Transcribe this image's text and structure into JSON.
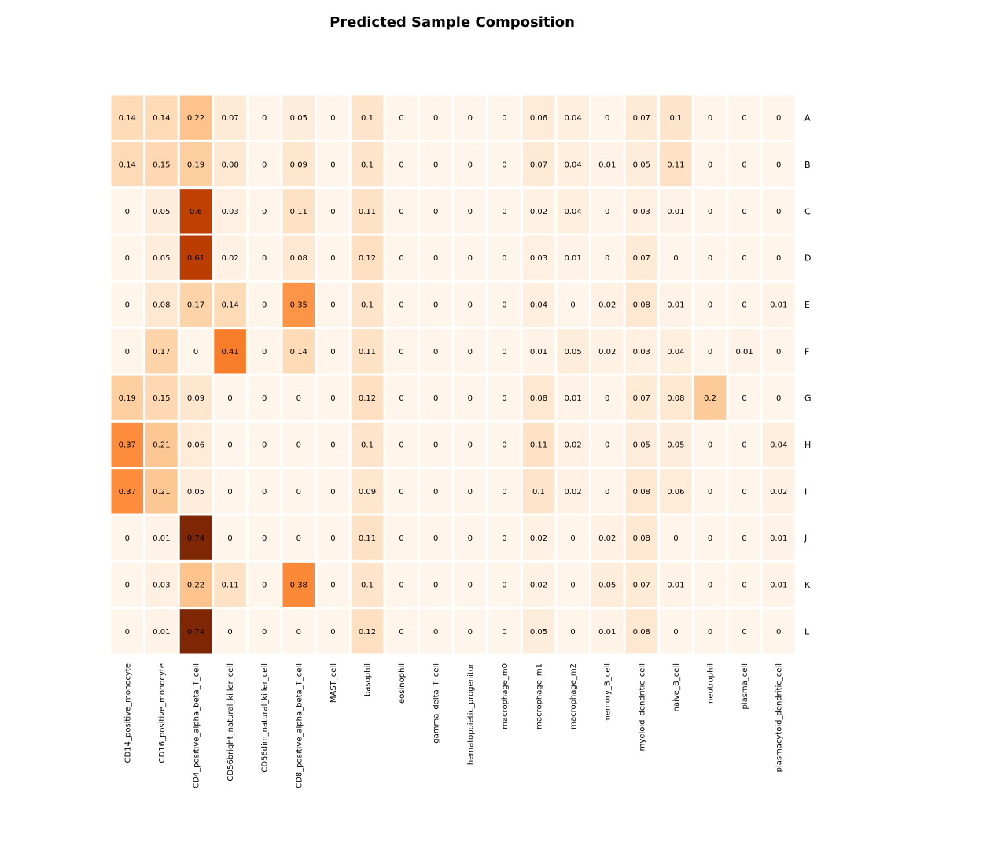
{
  "chart_data": {
    "type": "heatmap",
    "title": "Predicted Sample Composition",
    "colormap": "Oranges",
    "vmin": 0,
    "vmax": 0.74,
    "columns": [
      "CD14_positive_monocyte",
      "CD16_positive_monocyte",
      "CD4_positive_alpha_beta_T_cell",
      "CD56bright_natural_killer_cell",
      "CD56dim_natural_killer_cell",
      "CD8_positive_alpha_beta_T_cell",
      "MAST_cell",
      "basophil",
      "eosinophil",
      "gamma_delta_T_cell",
      "hematopoietic_progenitor",
      "macrophage_m0",
      "macrophage_m1",
      "macrophage_m2",
      "memory_B_cell",
      "myeloid_dendritic_cell",
      "naive_B_cell",
      "neutrophil",
      "plasma_cell",
      "plasmacytoid_dendritic_cell"
    ],
    "rows": [
      "A",
      "B",
      "C",
      "D",
      "E",
      "F",
      "G",
      "H",
      "I",
      "J",
      "K",
      "L"
    ],
    "values": [
      [
        0.14,
        0.14,
        0.22,
        0.07,
        0,
        0.05,
        0,
        0.1,
        0,
        0,
        0,
        0,
        0.06,
        0.04,
        0,
        0.07,
        0.1,
        0,
        0,
        0
      ],
      [
        0.14,
        0.15,
        0.19,
        0.08,
        0,
        0.09,
        0,
        0.1,
        0,
        0,
        0,
        0,
        0.07,
        0.04,
        0.01,
        0.05,
        0.11,
        0,
        0,
        0
      ],
      [
        0,
        0.05,
        0.6,
        0.03,
        0,
        0.11,
        0,
        0.11,
        0,
        0,
        0,
        0,
        0.02,
        0.04,
        0,
        0.03,
        0.01,
        0,
        0,
        0
      ],
      [
        0,
        0.05,
        0.61,
        0.02,
        0,
        0.08,
        0,
        0.12,
        0,
        0,
        0,
        0,
        0.03,
        0.01,
        0,
        0.07,
        0,
        0,
        0,
        0
      ],
      [
        0,
        0.08,
        0.17,
        0.14,
        0,
        0.35,
        0,
        0.1,
        0,
        0,
        0,
        0,
        0.04,
        0,
        0.02,
        0.08,
        0.01,
        0,
        0,
        0.01
      ],
      [
        0,
        0.17,
        0,
        0.41,
        0,
        0.14,
        0,
        0.11,
        0,
        0,
        0,
        0,
        0.01,
        0.05,
        0.02,
        0.03,
        0.04,
        0,
        0.01,
        0
      ],
      [
        0.19,
        0.15,
        0.09,
        0,
        0,
        0,
        0,
        0.12,
        0,
        0,
        0,
        0,
        0.08,
        0.01,
        0,
        0.07,
        0.08,
        0.2,
        0,
        0
      ],
      [
        0.37,
        0.21,
        0.06,
        0,
        0,
        0,
        0,
        0.1,
        0,
        0,
        0,
        0,
        0.11,
        0.02,
        0,
        0.05,
        0.05,
        0,
        0,
        0.04
      ],
      [
        0.37,
        0.21,
        0.05,
        0,
        0,
        0,
        0,
        0.09,
        0,
        0,
        0,
        0,
        0.1,
        0.02,
        0,
        0.08,
        0.06,
        0,
        0,
        0.02
      ],
      [
        0,
        0.01,
        0.74,
        0,
        0,
        0,
        0,
        0.11,
        0,
        0,
        0,
        0,
        0.02,
        0,
        0.02,
        0.08,
        0,
        0,
        0,
        0.01
      ],
      [
        0,
        0.03,
        0.22,
        0.11,
        0,
        0.38,
        0,
        0.1,
        0,
        0,
        0,
        0,
        0.02,
        0,
        0.05,
        0.07,
        0.01,
        0,
        0,
        0.01
      ],
      [
        0,
        0.01,
        0.74,
        0,
        0,
        0,
        0,
        0.12,
        0,
        0,
        0,
        0,
        0.05,
        0,
        0.01,
        0.08,
        0,
        0,
        0,
        0
      ]
    ]
  }
}
